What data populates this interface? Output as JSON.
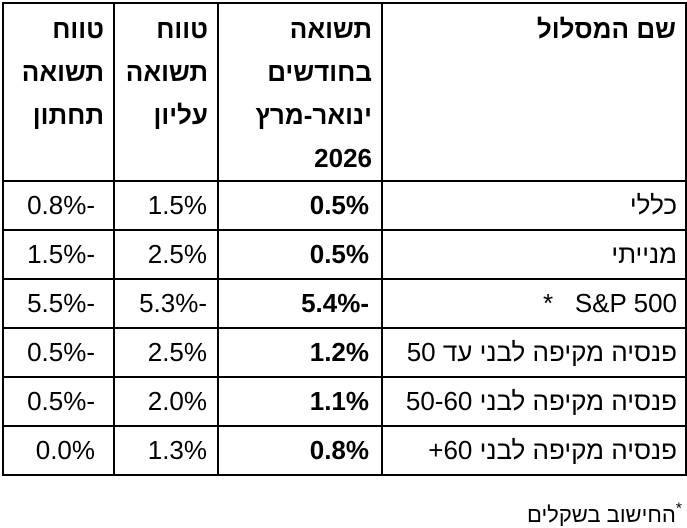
{
  "colors": {
    "background": "#ffffff",
    "border": "#000000",
    "text": "#000000"
  },
  "table": {
    "header": {
      "name_lines": [
        "שם המסלול"
      ],
      "return_lines": [
        "תשואה",
        "בחודשים",
        "ינואר-מרץ",
        "2026"
      ],
      "upper_lines": [
        "טווח",
        "תשואה",
        "עליון"
      ],
      "lower_lines": [
        "טווח",
        "תשואה",
        "תחתון"
      ]
    },
    "rows": [
      {
        "name": "כללי",
        "ret": "0.5%",
        "upper": "1.5%",
        "lower": "-0.8%"
      },
      {
        "name": "מנייתי",
        "ret": "0.5%",
        "upper": "2.5%",
        "lower": "-1.5%"
      },
      {
        "name": "S&P 500   *",
        "ret": "-5.4%",
        "upper": "-5.3%",
        "lower": "-5.5%"
      },
      {
        "name": "פנסיה מקיפה לבני עד 50",
        "ret": "1.2%",
        "upper": "2.5%",
        "lower": "-0.5%"
      },
      {
        "name": "פנסיה מקיפה לבני 50-60",
        "ret": "1.1%",
        "upper": "2.0%",
        "lower": "-0.5%"
      },
      {
        "name": "פנסיה מקיפה לבני 60+",
        "ret": "0.8%",
        "upper": "1.3%",
        "lower": "0.0%"
      }
    ]
  },
  "footnote": {
    "star": "*",
    "text": "החישוב בשקלים"
  }
}
